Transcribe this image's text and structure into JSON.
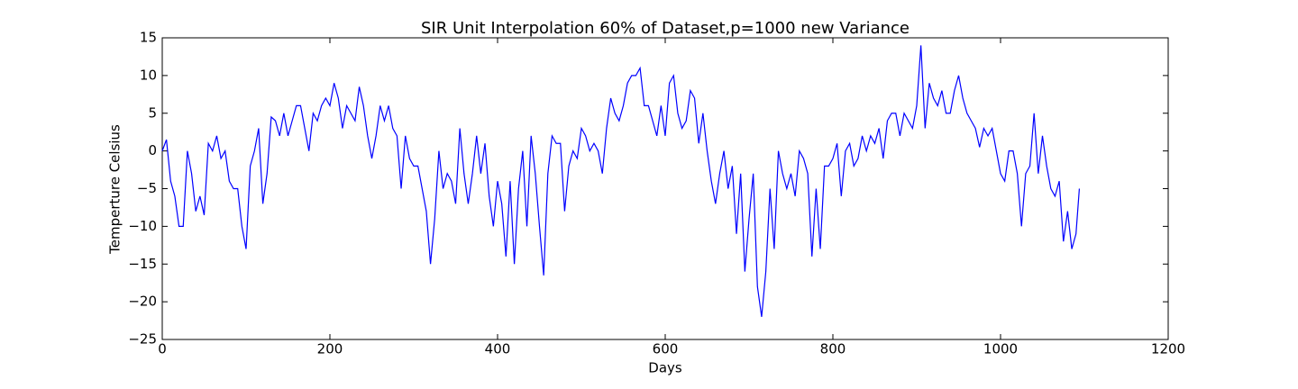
{
  "chart_data": {
    "type": "line",
    "title": "SIR Unit Interpolation 60% of Dataset,p=1000 new Variance",
    "x_label": "Days",
    "y_label": "Temperture Celsius",
    "xlim": [
      0,
      1200
    ],
    "ylim": [
      -25,
      15
    ],
    "xticks": [
      0,
      200,
      400,
      600,
      800,
      1000,
      1200
    ],
    "yticks": [
      {
        "value": -25,
        "label": "−25"
      },
      {
        "value": -20,
        "label": "−20"
      },
      {
        "value": -15,
        "label": "−15"
      },
      {
        "value": -10,
        "label": "−10"
      },
      {
        "value": -5,
        "label": "−5"
      },
      0,
      5,
      10,
      15
    ],
    "series": [
      {
        "color": "#0000ff",
        "x": [
          0,
          5,
          10,
          15,
          20,
          25,
          30,
          35,
          40,
          45,
          50,
          55,
          60,
          65,
          70,
          75,
          80,
          85,
          90,
          95,
          100,
          105,
          110,
          115,
          120,
          125,
          130,
          135,
          140,
          145,
          150,
          155,
          160,
          165,
          170,
          175,
          180,
          185,
          190,
          195,
          200,
          205,
          210,
          215,
          220,
          225,
          230,
          235,
          240,
          245,
          250,
          255,
          260,
          265,
          270,
          275,
          280,
          285,
          290,
          295,
          300,
          305,
          310,
          315,
          320,
          325,
          330,
          335,
          340,
          345,
          350,
          355,
          360,
          365,
          370,
          375,
          380,
          385,
          390,
          395,
          400,
          405,
          410,
          415,
          420,
          425,
          430,
          435,
          440,
          445,
          450,
          455,
          460,
          465,
          470,
          475,
          480,
          485,
          490,
          495,
          500,
          505,
          510,
          515,
          520,
          525,
          530,
          535,
          540,
          545,
          550,
          555,
          560,
          565,
          570,
          575,
          580,
          585,
          590,
          595,
          600,
          605,
          610,
          615,
          620,
          625,
          630,
          635,
          640,
          645,
          650,
          655,
          660,
          665,
          670,
          675,
          680,
          685,
          690,
          695,
          700,
          705,
          710,
          715,
          720,
          725,
          730,
          735,
          740,
          745,
          750,
          755,
          760,
          765,
          770,
          775,
          780,
          785,
          790,
          795,
          800,
          805,
          810,
          815,
          820,
          825,
          830,
          835,
          840,
          845,
          850,
          855,
          860,
          865,
          870,
          875,
          880,
          885,
          890,
          895,
          900,
          905,
          910,
          915,
          920,
          925,
          930,
          935,
          940,
          945,
          950,
          955,
          960,
          965,
          970,
          975,
          980,
          985,
          990,
          995,
          1000,
          1005,
          1010,
          1015,
          1020,
          1025,
          1030,
          1035,
          1040,
          1045,
          1050,
          1055,
          1060,
          1065,
          1070,
          1075,
          1080,
          1085,
          1090,
          1094
        ],
        "values": [
          0,
          1.5,
          -4,
          -6,
          -10,
          -10,
          0,
          -3,
          -8,
          -6,
          -8.5,
          1,
          0,
          2,
          -1,
          0,
          -4,
          -5,
          -5,
          -10,
          -13,
          -2,
          0,
          3,
          -7,
          -3,
          4.5,
          4,
          2,
          5,
          2,
          4,
          6,
          6,
          3,
          0,
          5,
          4,
          6,
          7,
          6,
          9,
          7,
          3,
          6,
          5,
          4,
          8.5,
          6,
          2,
          -1,
          2,
          6,
          4,
          6,
          3,
          2,
          -5,
          2,
          -1,
          -2,
          -2,
          -5,
          -8,
          -15,
          -9,
          0,
          -5,
          -3,
          -4,
          -7,
          3,
          -3,
          -7,
          -3,
          2,
          -3,
          1,
          -6,
          -10,
          -4,
          -7,
          -14,
          -4,
          -15,
          -5,
          0,
          -10,
          2,
          -3,
          -10,
          -16.5,
          -3,
          2,
          1,
          1,
          -8,
          -2,
          0,
          -1,
          3,
          2,
          0,
          1,
          0,
          -3,
          3,
          7,
          5,
          4,
          6,
          9,
          10,
          10,
          11,
          6,
          6,
          4,
          2,
          6,
          2,
          9,
          10,
          5,
          3,
          4,
          8,
          7,
          1,
          5,
          0,
          -4,
          -7,
          -3,
          0,
          -5,
          -2,
          -11,
          -3,
          -16,
          -9,
          -3,
          -18,
          -22,
          -16,
          -5,
          -13,
          0,
          -3,
          -5,
          -3,
          -6,
          0,
          -1,
          -3,
          -14,
          -5,
          -13,
          -2,
          -2,
          -1,
          1,
          -6,
          0,
          1,
          -2,
          -1,
          2,
          0,
          2,
          1,
          3,
          -1,
          4,
          5,
          5,
          2,
          5,
          4,
          3,
          6,
          14,
          3,
          9,
          7,
          6,
          8,
          5,
          5,
          8,
          10,
          7,
          5,
          4,
          3,
          0.5,
          3,
          2,
          3,
          0,
          -3,
          -4,
          0,
          0,
          -3,
          -10,
          -3,
          -2,
          5,
          -3,
          2,
          -2,
          -5,
          -6,
          -4,
          -12,
          -8,
          -13,
          -11,
          -5
        ]
      }
    ]
  }
}
